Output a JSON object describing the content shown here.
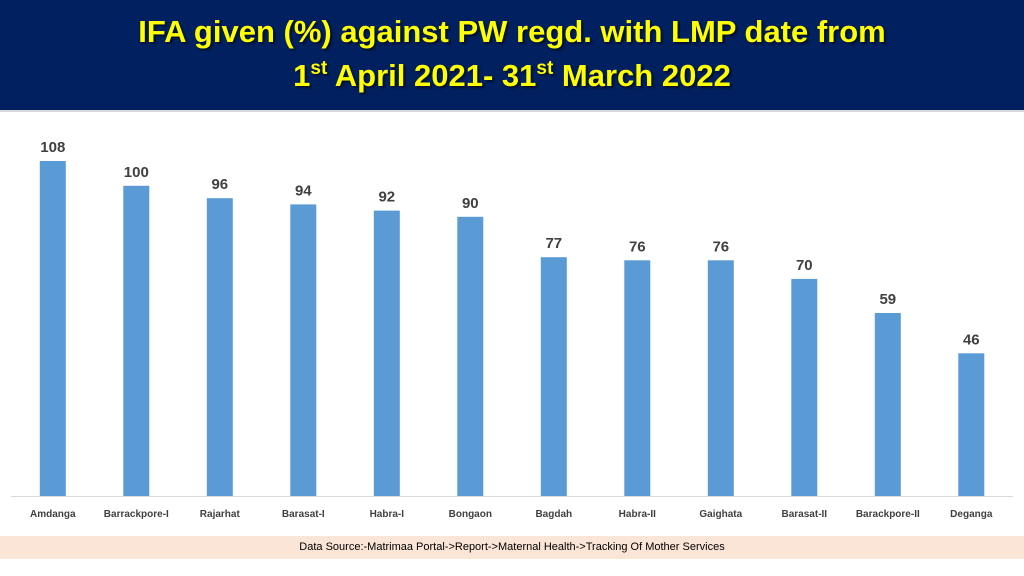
{
  "header": {
    "title_line1": "IFA given (%) against PW regd. with LMP date from",
    "title_line2_num1": "1",
    "title_line2_sup1": "st",
    "title_line2_mid": " April 2021- 31",
    "title_line2_sup2": "st",
    "title_line2_end": " March 2022"
  },
  "footer": {
    "source": "Data Source:-Matrimaa Portal->Report->Maternal Health->Tracking Of Mother Services"
  },
  "colors": {
    "header_bg": "#002060",
    "title_text": "#ffff00",
    "bar": "#5b9bd5",
    "footer_bg": "#fbe5d6"
  },
  "chart_data": {
    "type": "bar",
    "title": "",
    "xlabel": "",
    "ylabel": "",
    "ylim": [
      0,
      108
    ],
    "grid": false,
    "legend": "none",
    "categories": [
      "Amdanga",
      "Barrackpore-I",
      "Rajarhat",
      "Barasat-I",
      "Habra-I",
      "Bongaon",
      "Bagdah",
      "Habra-II",
      "Gaighata",
      "Barasat-II",
      "Barackpore-II",
      "Deganga"
    ],
    "values": [
      108,
      100,
      96,
      94,
      92,
      90,
      77,
      76,
      76,
      70,
      59,
      46
    ]
  }
}
